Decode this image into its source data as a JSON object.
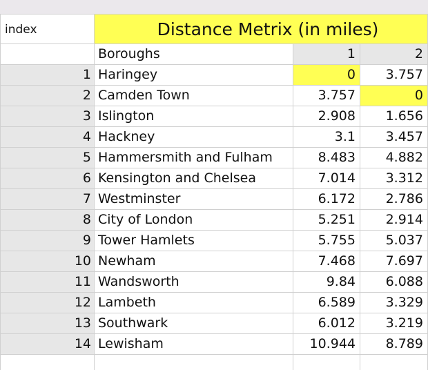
{
  "index_header": "index",
  "title": "Distance Metrix (in miles)",
  "boroughs_header": "Boroughs",
  "col_headers": [
    "1",
    "2"
  ],
  "rows": [
    {
      "idx": "1",
      "name": "Haringey",
      "c1": "0",
      "c2": "3.757"
    },
    {
      "idx": "2",
      "name": "Camden Town",
      "c1": "3.757",
      "c2": "0"
    },
    {
      "idx": "3",
      "name": "Islington",
      "c1": "2.908",
      "c2": "1.656"
    },
    {
      "idx": "4",
      "name": "Hackney",
      "c1": "3.1",
      "c2": "3.457"
    },
    {
      "idx": "5",
      "name": "Hammersmith and Fulham",
      "c1": "8.483",
      "c2": "4.882"
    },
    {
      "idx": "6",
      "name": "Kensington and Chelsea",
      "c1": "7.014",
      "c2": "3.312"
    },
    {
      "idx": "7",
      "name": "Westminster",
      "c1": "6.172",
      "c2": "2.786"
    },
    {
      "idx": "8",
      "name": "City of London",
      "c1": "5.251",
      "c2": "2.914"
    },
    {
      "idx": "9",
      "name": "Tower Hamlets",
      "c1": "5.755",
      "c2": "5.037"
    },
    {
      "idx": "10",
      "name": "Newham",
      "c1": "7.468",
      "c2": "7.697"
    },
    {
      "idx": "11",
      "name": "Wandsworth",
      "c1": "9.84",
      "c2": "6.088"
    },
    {
      "idx": "12",
      "name": "Lambeth",
      "c1": "6.589",
      "c2": "3.329"
    },
    {
      "idx": "13",
      "name": "Southwark",
      "c1": "6.012",
      "c2": "3.219"
    },
    {
      "idx": "14",
      "name": "Lewisham",
      "c1": "10.944",
      "c2": "8.789"
    }
  ],
  "colors": {
    "highlight": "#ffff54",
    "row_header_gray": "#e7e7e7",
    "top_band": "#ebe8ec",
    "gridline": "#d0d0d0"
  }
}
